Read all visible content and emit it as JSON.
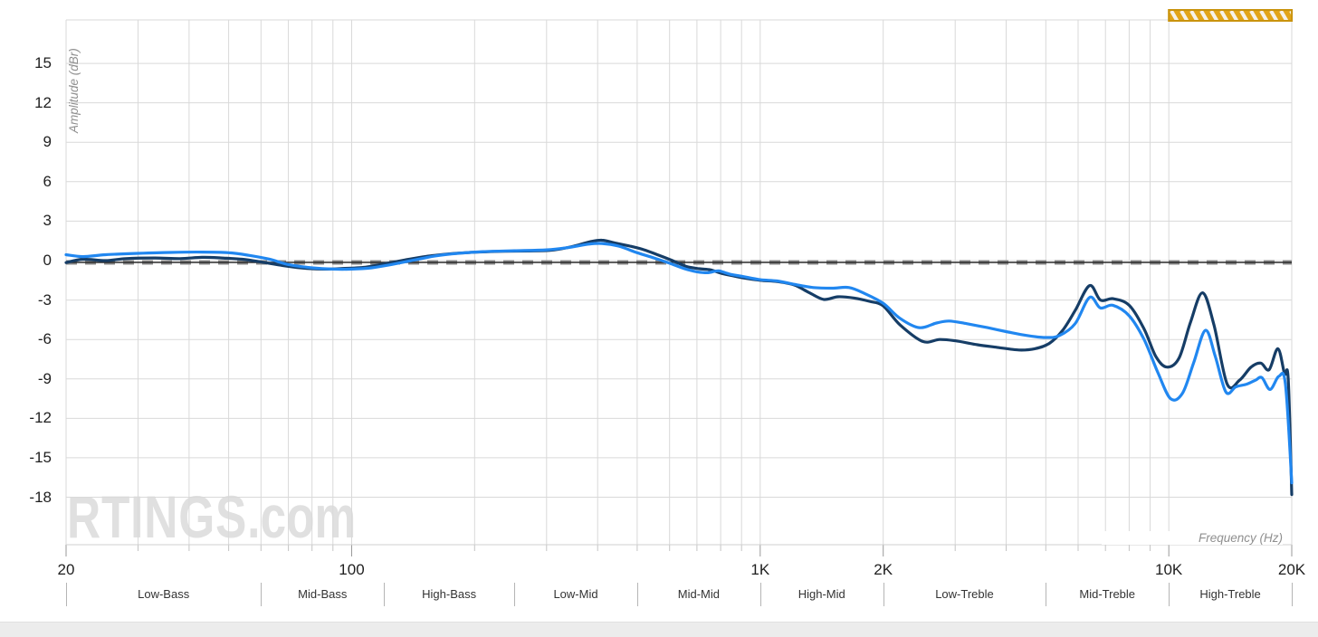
{
  "watermark": {
    "text": "RTINGS",
    "suffix": ".com"
  },
  "chart_data": {
    "type": "line",
    "title": "",
    "xlabel": "Frequency (Hz)",
    "ylabel": "Amplitude (dBr)",
    "x_scale": "log",
    "x_range": [
      20,
      20000
    ],
    "grid": true,
    "legend_position": "none",
    "x_ticks": [
      {
        "label": "20",
        "value": 20
      },
      {
        "label": "100",
        "value": 100
      },
      {
        "label": "1K",
        "value": 1000
      },
      {
        "label": "2K",
        "value": 2000
      },
      {
        "label": "10K",
        "value": 10000
      },
      {
        "label": "20K",
        "value": 20000
      }
    ],
    "y_ticks": [
      {
        "label": "15",
        "value": 15
      },
      {
        "label": "12",
        "value": 12
      },
      {
        "label": "9",
        "value": 9
      },
      {
        "label": "6",
        "value": 6
      },
      {
        "label": "3",
        "value": 3
      },
      {
        "label": "0",
        "value": 0
      },
      {
        "label": "-3",
        "value": -3
      },
      {
        "label": "-6",
        "value": -6
      },
      {
        "label": "-9",
        "value": -9
      },
      {
        "label": "-12",
        "value": -12
      },
      {
        "label": "-15",
        "value": -15
      },
      {
        "label": "-18",
        "value": -18
      }
    ],
    "target_line": {
      "value": 0,
      "style": "dashed",
      "dash_color": "#8a8a8a",
      "core_color": "#2b2b2b"
    },
    "bands": [
      {
        "label": "Low-Bass",
        "from": 20,
        "to": 60
      },
      {
        "label": "Mid-Bass",
        "from": 60,
        "to": 120
      },
      {
        "label": "High-Bass",
        "from": 120,
        "to": 250
      },
      {
        "label": "Low-Mid",
        "from": 250,
        "to": 500
      },
      {
        "label": "Mid-Mid",
        "from": 500,
        "to": 1000
      },
      {
        "label": "High-Mid",
        "from": 1000,
        "to": 2000
      },
      {
        "label": "Low-Treble",
        "from": 2000,
        "to": 5000
      },
      {
        "label": "Mid-Treble",
        "from": 5000,
        "to": 10000
      },
      {
        "label": "High-Treble",
        "from": 10000,
        "to": 20000
      }
    ],
    "uncertainty_marker": {
      "from": 10000,
      "to": 20000,
      "fill": "#e2a417",
      "stripe": "#f6f2e8",
      "border": "#c9930d"
    },
    "series": [
      {
        "name": "dark-navy-curve",
        "color": "#163d66",
        "points": [
          [
            20,
            -0.15
          ],
          [
            22,
            0.1
          ],
          [
            25,
            0
          ],
          [
            28,
            0.15
          ],
          [
            33,
            0.2
          ],
          [
            38,
            0.15
          ],
          [
            43,
            0.25
          ],
          [
            48,
            0.2
          ],
          [
            54,
            0.1
          ],
          [
            60,
            -0.1
          ],
          [
            67,
            -0.35
          ],
          [
            75,
            -0.55
          ],
          [
            85,
            -0.65
          ],
          [
            95,
            -0.6
          ],
          [
            108,
            -0.5
          ],
          [
            120,
            -0.25
          ],
          [
            135,
            0.05
          ],
          [
            152,
            0.32
          ],
          [
            172,
            0.5
          ],
          [
            195,
            0.62
          ],
          [
            230,
            0.7
          ],
          [
            270,
            0.73
          ],
          [
            310,
            0.8
          ],
          [
            350,
            1.1
          ],
          [
            385,
            1.45
          ],
          [
            410,
            1.55
          ],
          [
            440,
            1.35
          ],
          [
            480,
            1.1
          ],
          [
            520,
            0.82
          ],
          [
            560,
            0.45
          ],
          [
            610,
            0
          ],
          [
            660,
            -0.45
          ],
          [
            710,
            -0.62
          ],
          [
            755,
            -0.7
          ],
          [
            800,
            -0.95
          ],
          [
            855,
            -1.15
          ],
          [
            910,
            -1.32
          ],
          [
            1000,
            -1.5
          ],
          [
            1100,
            -1.6
          ],
          [
            1210,
            -1.85
          ],
          [
            1320,
            -2.45
          ],
          [
            1430,
            -2.95
          ],
          [
            1550,
            -2.75
          ],
          [
            1700,
            -2.85
          ],
          [
            1850,
            -3.1
          ],
          [
            2000,
            -3.45
          ],
          [
            2200,
            -4.9
          ],
          [
            2500,
            -6.15
          ],
          [
            2750,
            -6.0
          ],
          [
            3000,
            -6.1
          ],
          [
            3400,
            -6.4
          ],
          [
            3800,
            -6.6
          ],
          [
            4300,
            -6.8
          ],
          [
            4700,
            -6.7
          ],
          [
            5100,
            -6.3
          ],
          [
            5500,
            -5.3
          ],
          [
            5900,
            -3.8
          ],
          [
            6400,
            -1.9
          ],
          [
            6800,
            -3.0
          ],
          [
            7300,
            -2.9
          ],
          [
            8000,
            -3.4
          ],
          [
            8700,
            -5.2
          ],
          [
            9300,
            -7.3
          ],
          [
            9900,
            -8.1
          ],
          [
            10600,
            -7.4
          ],
          [
            11300,
            -4.7
          ],
          [
            12100,
            -2.45
          ],
          [
            12900,
            -4.9
          ],
          [
            13900,
            -9.4
          ],
          [
            14900,
            -9.1
          ],
          [
            15900,
            -8.1
          ],
          [
            16800,
            -7.8
          ],
          [
            17600,
            -8.3
          ],
          [
            18500,
            -6.7
          ],
          [
            19200,
            -8.6
          ],
          [
            19600,
            -9.0
          ],
          [
            20000,
            -17.8
          ]
        ]
      },
      {
        "name": "bright-blue-curve",
        "color": "#2187f0",
        "points": [
          [
            20,
            0.45
          ],
          [
            22,
            0.3
          ],
          [
            25,
            0.45
          ],
          [
            30,
            0.55
          ],
          [
            36,
            0.62
          ],
          [
            43,
            0.65
          ],
          [
            50,
            0.6
          ],
          [
            56,
            0.4
          ],
          [
            63,
            0.1
          ],
          [
            70,
            -0.3
          ],
          [
            80,
            -0.55
          ],
          [
            90,
            -0.65
          ],
          [
            100,
            -0.65
          ],
          [
            112,
            -0.55
          ],
          [
            125,
            -0.3
          ],
          [
            140,
            0
          ],
          [
            160,
            0.35
          ],
          [
            182,
            0.55
          ],
          [
            210,
            0.68
          ],
          [
            250,
            0.75
          ],
          [
            300,
            0.82
          ],
          [
            340,
            1.0
          ],
          [
            380,
            1.25
          ],
          [
            410,
            1.3
          ],
          [
            450,
            1.1
          ],
          [
            500,
            0.6
          ],
          [
            550,
            0.2
          ],
          [
            600,
            -0.2
          ],
          [
            650,
            -0.6
          ],
          [
            700,
            -0.85
          ],
          [
            745,
            -0.92
          ],
          [
            790,
            -0.78
          ],
          [
            840,
            -1.02
          ],
          [
            910,
            -1.22
          ],
          [
            1000,
            -1.45
          ],
          [
            1100,
            -1.55
          ],
          [
            1210,
            -1.8
          ],
          [
            1350,
            -2.05
          ],
          [
            1500,
            -2.1
          ],
          [
            1650,
            -2.05
          ],
          [
            1800,
            -2.5
          ],
          [
            2000,
            -3.25
          ],
          [
            2200,
            -4.4
          ],
          [
            2450,
            -5.1
          ],
          [
            2700,
            -4.75
          ],
          [
            2900,
            -4.6
          ],
          [
            3200,
            -4.8
          ],
          [
            3600,
            -5.1
          ],
          [
            4000,
            -5.4
          ],
          [
            4500,
            -5.7
          ],
          [
            5000,
            -5.85
          ],
          [
            5400,
            -5.7
          ],
          [
            5900,
            -4.8
          ],
          [
            6400,
            -2.8
          ],
          [
            6800,
            -3.6
          ],
          [
            7300,
            -3.4
          ],
          [
            8000,
            -4.2
          ],
          [
            8700,
            -6.0
          ],
          [
            9400,
            -8.5
          ],
          [
            10100,
            -10.5
          ],
          [
            10800,
            -10.1
          ],
          [
            11500,
            -7.8
          ],
          [
            12300,
            -5.3
          ],
          [
            13000,
            -7.3
          ],
          [
            13800,
            -10.0
          ],
          [
            14600,
            -9.6
          ],
          [
            15500,
            -9.4
          ],
          [
            16300,
            -9.1
          ],
          [
            16900,
            -8.9
          ],
          [
            17700,
            -9.8
          ],
          [
            18600,
            -8.8
          ],
          [
            19300,
            -9.4
          ],
          [
            20000,
            -16.9
          ]
        ]
      }
    ]
  }
}
